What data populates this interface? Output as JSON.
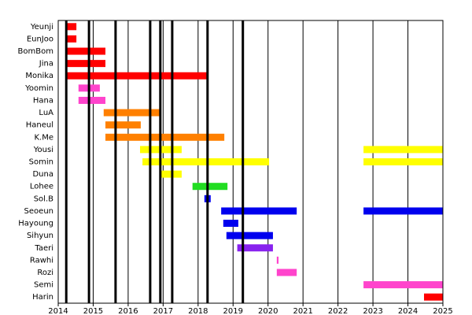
{
  "chart_data": {
    "type": "timeline",
    "xlim": [
      2014,
      2025
    ],
    "xticks": [
      2014,
      2015,
      2016,
      2017,
      2018,
      2019,
      2020,
      2021,
      2022,
      2023,
      2024,
      2025
    ],
    "grid": true,
    "events": [
      2014.23,
      2014.88,
      2015.64,
      2016.63,
      2016.92,
      2017.26,
      2018.27,
      2019.28
    ],
    "event_color": "#000000",
    "rows": [
      {
        "name": "Yeunji",
        "color": "#ff0000",
        "periods": [
          [
            2014.23,
            2014.52
          ]
        ]
      },
      {
        "name": "EunJoo",
        "color": "#ff0000",
        "periods": [
          [
            2014.23,
            2014.52
          ]
        ]
      },
      {
        "name": "BomBom",
        "color": "#ff0000",
        "periods": [
          [
            2014.23,
            2015.35
          ]
        ]
      },
      {
        "name": "Jina",
        "color": "#ff0000",
        "periods": [
          [
            2014.23,
            2015.35
          ]
        ]
      },
      {
        "name": "Monika",
        "color": "#ff0000",
        "periods": [
          [
            2014.23,
            2018.25
          ]
        ]
      },
      {
        "name": "Yoomin",
        "color": "#ff44cc",
        "periods": [
          [
            2014.58,
            2015.19
          ]
        ]
      },
      {
        "name": "Hana",
        "color": "#ff44cc",
        "periods": [
          [
            2014.58,
            2015.35
          ]
        ]
      },
      {
        "name": "LuA",
        "color": "#ff8000",
        "periods": [
          [
            2015.3,
            2016.92
          ]
        ]
      },
      {
        "name": "Haneul",
        "color": "#ff8000",
        "periods": [
          [
            2015.35,
            2016.36
          ]
        ]
      },
      {
        "name": "K.Me",
        "color": "#ff8000",
        "periods": [
          [
            2015.35,
            2018.75
          ]
        ]
      },
      {
        "name": "Yousi",
        "color": "#ffff00",
        "periods": [
          [
            2016.34,
            2017.53
          ],
          [
            2022.73,
            2025
          ]
        ]
      },
      {
        "name": "Somin",
        "color": "#ffff00",
        "periods": [
          [
            2016.41,
            2020.03
          ],
          [
            2022.73,
            2025
          ]
        ]
      },
      {
        "name": "Duna",
        "color": "#ffff00",
        "periods": [
          [
            2016.92,
            2017.53
          ]
        ]
      },
      {
        "name": "Lohee",
        "color": "#22dd22",
        "periods": [
          [
            2017.84,
            2018.84
          ]
        ]
      },
      {
        "name": "Sol.B",
        "color": "#0000ee",
        "periods": [
          [
            2018.18,
            2018.36
          ]
        ]
      },
      {
        "name": "Seoeun",
        "color": "#0000ee",
        "periods": [
          [
            2018.66,
            2020.82
          ],
          [
            2022.73,
            2025
          ]
        ]
      },
      {
        "name": "Hayoung",
        "color": "#0000ee",
        "periods": [
          [
            2018.72,
            2019.15
          ]
        ]
      },
      {
        "name": "Sihyun",
        "color": "#0000ee",
        "periods": [
          [
            2018.81,
            2020.14
          ]
        ]
      },
      {
        "name": "Taeri",
        "color": "#8822ee",
        "periods": [
          [
            2019.12,
            2020.14
          ]
        ]
      },
      {
        "name": "Rawhi",
        "color": "#ff44cc",
        "periods": [
          [
            2020.25,
            2020.3
          ]
        ]
      },
      {
        "name": "Rozi",
        "color": "#ff44cc",
        "periods": [
          [
            2020.25,
            2020.82
          ]
        ]
      },
      {
        "name": "Semi",
        "color": "#ff44cc",
        "periods": [
          [
            2022.73,
            2025
          ]
        ]
      },
      {
        "name": "Harin",
        "color": "#ff0000",
        "periods": [
          [
            2024.46,
            2025
          ]
        ]
      }
    ]
  }
}
